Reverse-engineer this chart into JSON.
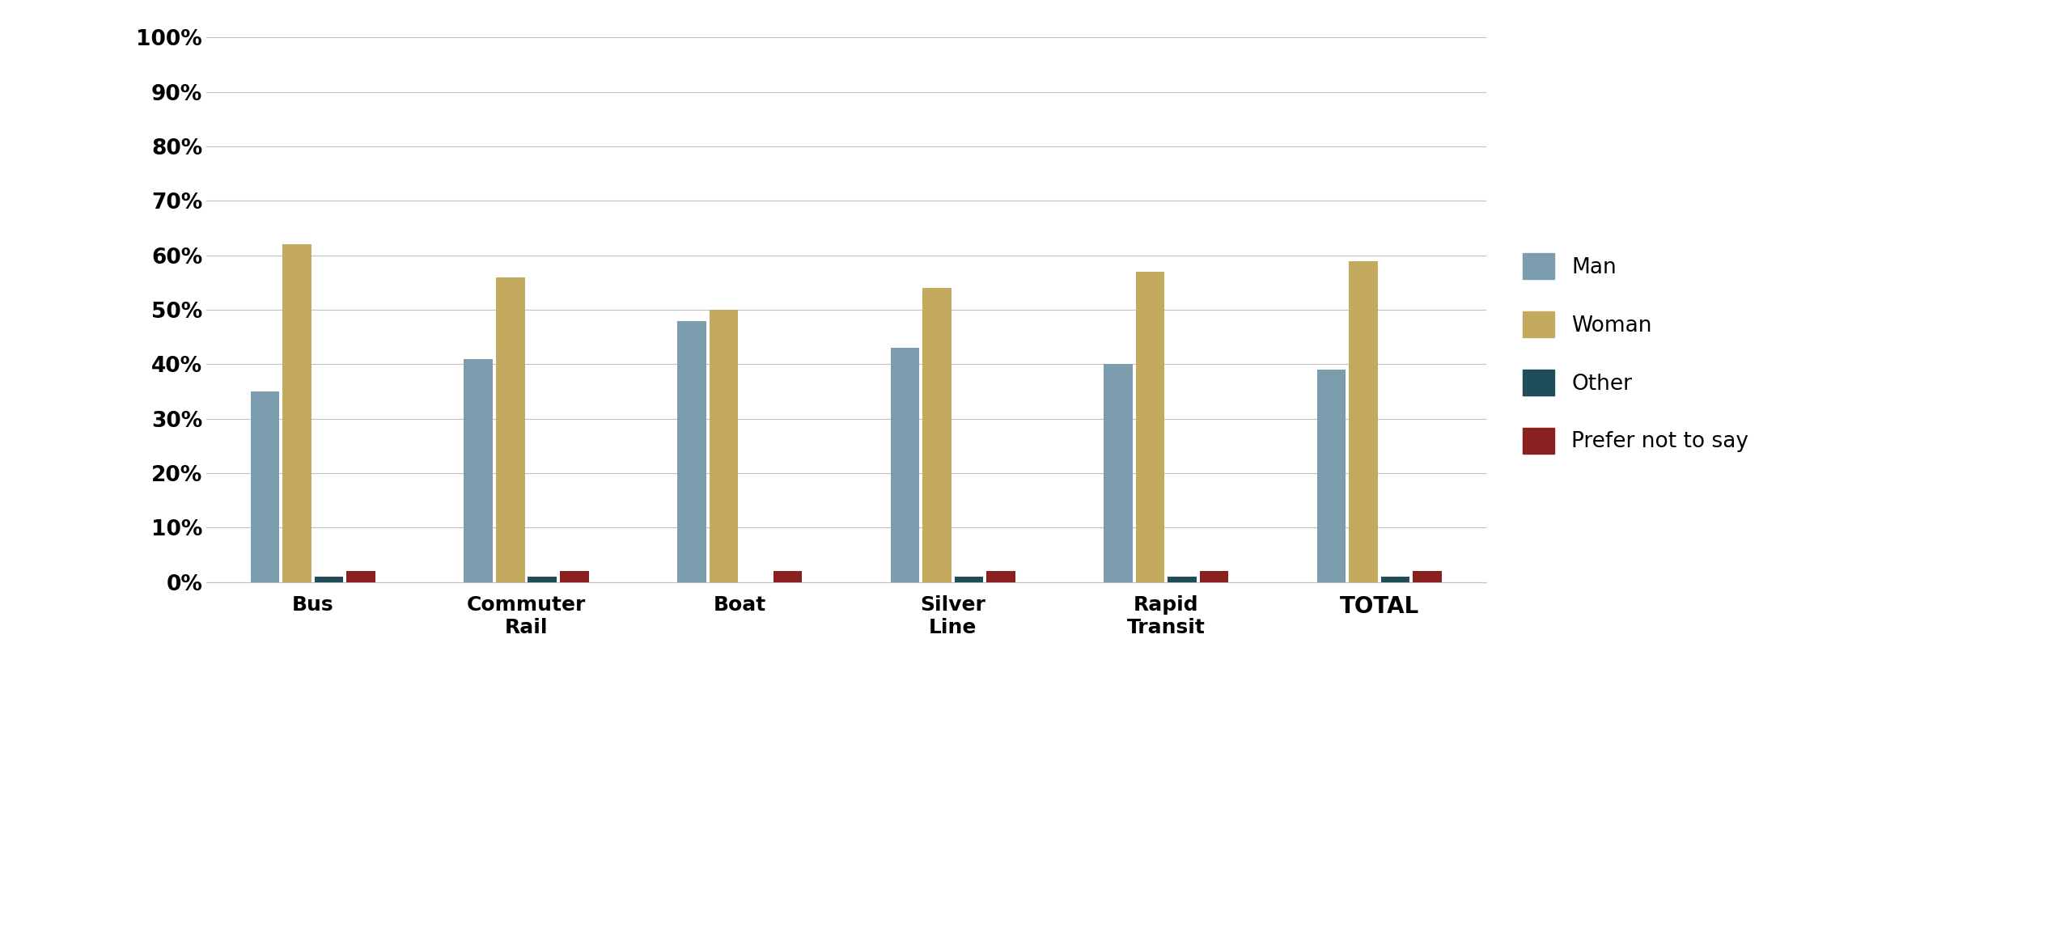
{
  "categories": [
    "Bus",
    "Commuter\nRail",
    "Boat",
    "Silver\nLine",
    "Rapid\nTransit",
    "TOTAL"
  ],
  "series": {
    "Man": [
      35,
      41,
      48,
      43,
      40,
      39
    ],
    "Woman": [
      62,
      56,
      50,
      54,
      57,
      59
    ],
    "Other": [
      1,
      1,
      0,
      1,
      1,
      1
    ],
    "Prefer not to say": [
      2,
      2,
      2,
      2,
      2,
      2
    ]
  },
  "colors": {
    "Man": "#7b9dae",
    "Woman": "#c4aa5e",
    "Other": "#1f4e5a",
    "Prefer not to say": "#8b2020"
  },
  "ylim": [
    0,
    100
  ],
  "yticks": [
    0,
    10,
    20,
    30,
    40,
    50,
    60,
    70,
    80,
    90,
    100
  ],
  "ytick_labels": [
    "0%",
    "10%",
    "20%",
    "30%",
    "40%",
    "50%",
    "60%",
    "70%",
    "80%",
    "90%",
    "100%"
  ],
  "legend_order": [
    "Man",
    "Woman",
    "Other",
    "Prefer not to say"
  ],
  "bar_width": 0.15,
  "bg_color": "#ffffff",
  "grid_color": "#c0c0c0",
  "total_label_index": 5,
  "figsize": [
    25.51,
    11.61
  ],
  "dpi": 100
}
